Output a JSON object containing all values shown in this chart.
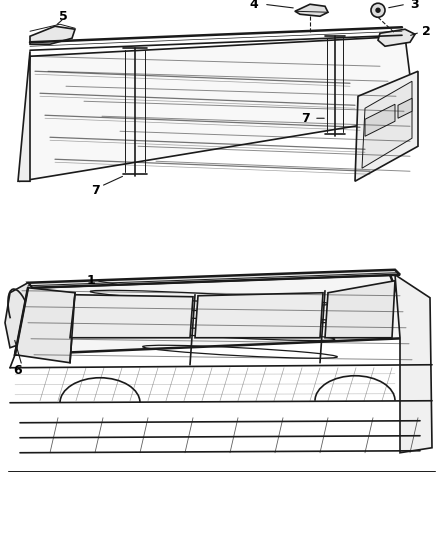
{
  "background_color": "#ffffff",
  "line_color": "#1a1a1a",
  "label_color": "#000000",
  "fig_width": 4.38,
  "fig_height": 5.33,
  "dpi": 100,
  "top_diagram": {
    "y_min": 0.52,
    "y_max": 1.0
  },
  "bottom_diagram": {
    "y_min": 0.0,
    "y_max": 0.5
  }
}
